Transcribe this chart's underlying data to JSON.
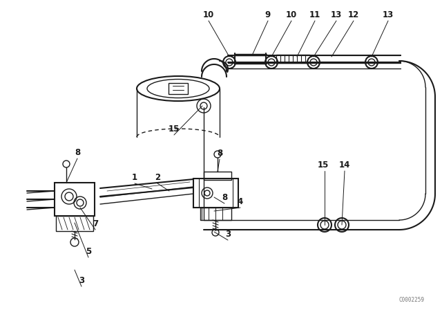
{
  "background_color": "#ffffff",
  "line_color": "#1a1a1a",
  "watermark": "C0002259",
  "figsize": [
    6.4,
    4.48
  ],
  "dpi": 100,
  "labels_top": [
    [
      "10",
      302,
      28
    ],
    [
      "9",
      388,
      28
    ],
    [
      "10",
      422,
      28
    ],
    [
      "11",
      456,
      28
    ],
    [
      "13",
      489,
      28
    ],
    [
      "12",
      510,
      28
    ],
    [
      "13",
      560,
      28
    ]
  ],
  "labels_mid": [
    [
      "15",
      265,
      195
    ],
    [
      "15",
      476,
      245
    ],
    [
      "14",
      500,
      245
    ]
  ],
  "labels_bot": [
    [
      "8",
      112,
      228
    ],
    [
      "1",
      195,
      265
    ],
    [
      "2",
      222,
      265
    ],
    [
      "8",
      310,
      228
    ],
    [
      "8",
      318,
      290
    ],
    [
      "4",
      338,
      295
    ],
    [
      "3",
      318,
      340
    ],
    [
      "7",
      130,
      330
    ],
    [
      "5",
      120,
      368
    ],
    [
      "3",
      115,
      410
    ]
  ]
}
